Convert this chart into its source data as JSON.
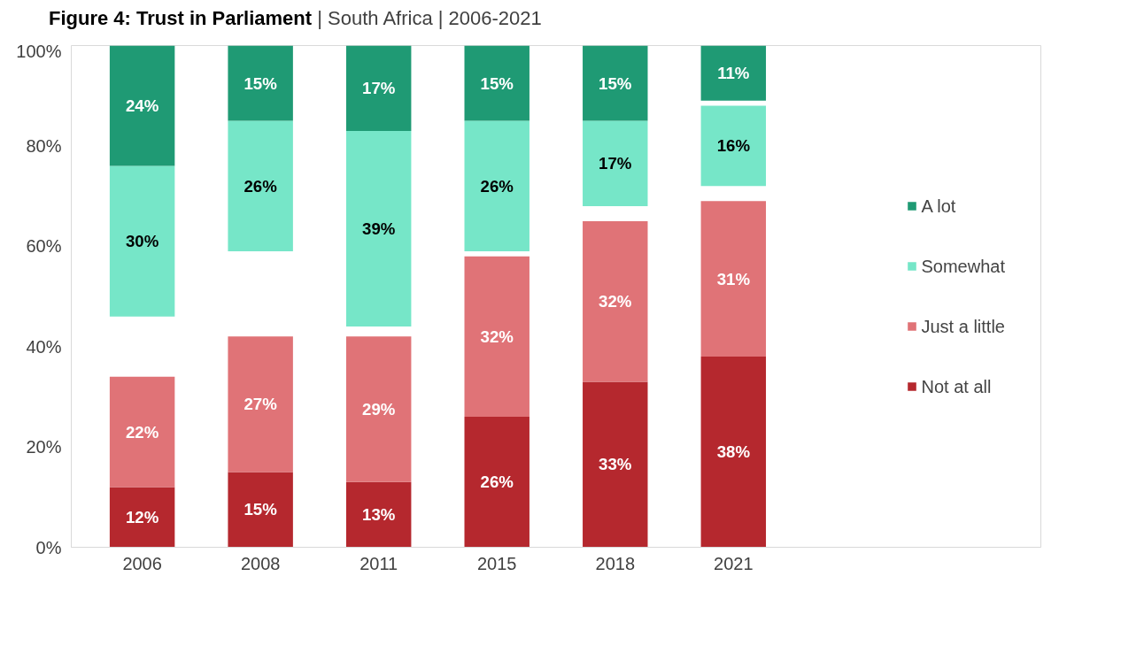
{
  "chart_data": {
    "type": "bar",
    "title": "Figure 4: Trust in Parliament",
    "subtitle": "| South Africa | 2006-2021",
    "categories": [
      "2006",
      "2008",
      "2011",
      "2015",
      "2018",
      "2021"
    ],
    "series": [
      {
        "name": "Not at all",
        "color": "#b5282e",
        "values": [
          12,
          15,
          13,
          26,
          33,
          38
        ],
        "base": [
          0,
          0,
          0,
          0,
          0,
          0
        ],
        "value_labels": [
          "12%",
          "15%",
          "13%",
          "26%",
          "33%",
          "38%"
        ]
      },
      {
        "name": "Just a little",
        "color": "#e07377",
        "values": [
          22,
          27,
          29,
          32,
          32,
          31
        ],
        "base": [
          12,
          15,
          13,
          26,
          33,
          38
        ],
        "value_labels": [
          "22%",
          "27%",
          "29%",
          "32%",
          "32%",
          "31%"
        ]
      },
      {
        "name": "Somewhat",
        "color": "#76e6c8",
        "values": [
          30,
          26,
          39,
          26,
          17,
          16
        ],
        "base": [
          46,
          59,
          44,
          59,
          68,
          72
        ],
        "value_labels": [
          "30%",
          "26%",
          "39%",
          "26%",
          "17%",
          "16%"
        ]
      },
      {
        "name": "A lot",
        "color": "#1f9a74",
        "values": [
          24,
          15,
          17,
          15,
          15,
          11
        ],
        "base": [
          76,
          85,
          83,
          85,
          85,
          89
        ],
        "value_labels": [
          "24%",
          "15%",
          "17%",
          "15%",
          "15%",
          "11%"
        ]
      }
    ],
    "ylim": [
      0,
      100
    ],
    "yticks": [
      {
        "value": 0,
        "label": "0%"
      },
      {
        "value": 20,
        "label": "20%"
      },
      {
        "value": 40,
        "label": "40%"
      },
      {
        "value": 60,
        "label": "60%"
      },
      {
        "value": 80,
        "label": "80%"
      },
      {
        "value": 100,
        "label": "100%"
      }
    ],
    "legend": "right",
    "grid": false
  }
}
